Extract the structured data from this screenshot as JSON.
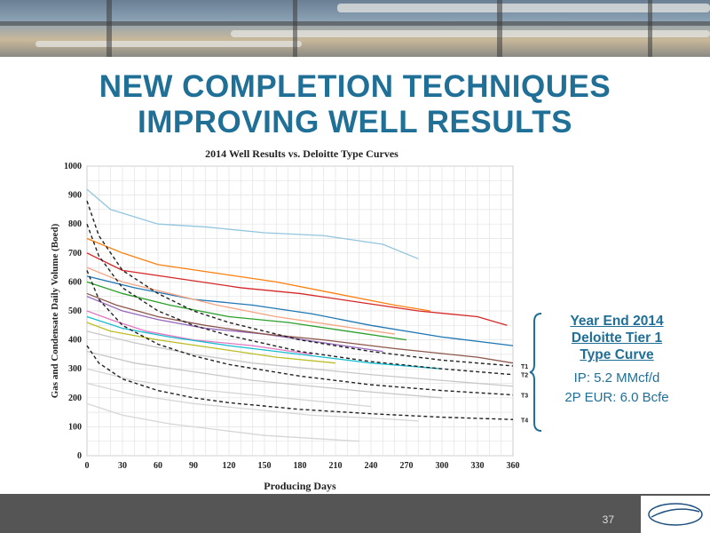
{
  "slide": {
    "title_lines": [
      "NEW COMPLETION TECHNIQUES",
      "IMPROVING WELL RESULTS"
    ],
    "page_number": "37"
  },
  "callout": {
    "heading_lines": [
      "Year End 2014",
      "Deloitte Tier 1",
      "Type Curve"
    ],
    "ip": "IP: 5.2 MMcf/d",
    "eur": "2P EUR: 6.0 Bcfe"
  },
  "colors": {
    "title": "#1f6f97",
    "footer": "#555555",
    "type_curve": "#222222",
    "well_palette": [
      "#d6d6d6",
      "#c8c8c8",
      "#1f77b4",
      "#ff7f0e",
      "#2ca02c",
      "#d62728",
      "#9467bd",
      "#8c564b",
      "#e377c2",
      "#17becf",
      "#bcbd22",
      "#f4a582",
      "#92c5de"
    ]
  },
  "chart_data": {
    "type": "line",
    "title": "2014 Well Results vs. Deloitte Type Curves",
    "xlabel": "Producing Days",
    "ylabel": "Gas and Condensate Daily Volume (Boed)",
    "xlim": [
      0,
      360
    ],
    "ylim": [
      0,
      1000
    ],
    "xticks": [
      0,
      30,
      60,
      90,
      120,
      150,
      180,
      210,
      240,
      270,
      300,
      330,
      360
    ],
    "yticks": [
      0,
      100,
      200,
      300,
      400,
      500,
      600,
      700,
      800,
      900,
      1000
    ],
    "grid": true,
    "legend": "none",
    "type_curves": [
      {
        "name": "T1",
        "x": [
          0,
          10,
          30,
          60,
          90,
          120,
          180,
          240,
          300,
          360
        ],
        "y": [
          880,
          760,
          640,
          560,
          500,
          460,
          400,
          360,
          330,
          310
        ]
      },
      {
        "name": "T2",
        "x": [
          0,
          10,
          30,
          60,
          90,
          120,
          180,
          240,
          300,
          360
        ],
        "y": [
          800,
          690,
          580,
          500,
          450,
          415,
          360,
          325,
          300,
          280
        ]
      },
      {
        "name": "T3",
        "x": [
          0,
          10,
          30,
          60,
          90,
          120,
          180,
          240,
          300,
          360
        ],
        "y": [
          640,
          540,
          450,
          385,
          345,
          315,
          275,
          245,
          225,
          210
        ]
      },
      {
        "name": "T4",
        "x": [
          0,
          10,
          30,
          60,
          90,
          120,
          180,
          240,
          300,
          360
        ],
        "y": [
          380,
          320,
          265,
          225,
          200,
          183,
          160,
          145,
          133,
          125
        ]
      }
    ],
    "wells": [
      {
        "color": "#92c5de",
        "x": [
          0,
          20,
          60,
          100,
          150,
          200,
          250,
          280
        ],
        "y": [
          920,
          850,
          800,
          790,
          770,
          760,
          730,
          680
        ]
      },
      {
        "color": "#d62728",
        "x": [
          0,
          30,
          80,
          130,
          180,
          230,
          280,
          330,
          355
        ],
        "y": [
          700,
          640,
          610,
          580,
          560,
          530,
          500,
          480,
          450
        ]
      },
      {
        "color": "#ff7f0e",
        "x": [
          0,
          30,
          60,
          110,
          160,
          210,
          260,
          290
        ],
        "y": [
          750,
          700,
          660,
          630,
          600,
          560,
          520,
          500
        ]
      },
      {
        "color": "#1f77b4",
        "x": [
          0,
          40,
          90,
          140,
          190,
          240,
          300,
          360
        ],
        "y": [
          620,
          580,
          540,
          520,
          490,
          450,
          410,
          380
        ]
      },
      {
        "color": "#2ca02c",
        "x": [
          0,
          30,
          70,
          120,
          170,
          220,
          270
        ],
        "y": [
          600,
          560,
          520,
          480,
          460,
          430,
          400
        ]
      },
      {
        "color": "#9467bd",
        "x": [
          0,
          30,
          60,
          100,
          150,
          200,
          250
        ],
        "y": [
          550,
          500,
          470,
          440,
          420,
          390,
          360
        ]
      },
      {
        "color": "#8c564b",
        "x": [
          0,
          25,
          60,
          100,
          150,
          200,
          260,
          330,
          360
        ],
        "y": [
          560,
          520,
          480,
          450,
          420,
          400,
          370,
          340,
          320
        ]
      },
      {
        "color": "#e377c2",
        "x": [
          0,
          20,
          50,
          90,
          140,
          190
        ],
        "y": [
          500,
          470,
          430,
          400,
          380,
          350
        ]
      },
      {
        "color": "#17becf",
        "x": [
          0,
          30,
          70,
          120,
          180,
          240,
          300
        ],
        "y": [
          480,
          440,
          410,
          380,
          350,
          320,
          300
        ]
      },
      {
        "color": "#bcbd22",
        "x": [
          0,
          20,
          60,
          110,
          160,
          210
        ],
        "y": [
          460,
          430,
          400,
          370,
          340,
          320
        ]
      },
      {
        "color": "#c8c8c8",
        "x": [
          0,
          40,
          90,
          140,
          190,
          240,
          300,
          360
        ],
        "y": [
          430,
          390,
          350,
          320,
          300,
          280,
          260,
          240
        ]
      },
      {
        "color": "#c8c8c8",
        "x": [
          0,
          40,
          90,
          140,
          190,
          240,
          300
        ],
        "y": [
          360,
          320,
          290,
          260,
          240,
          220,
          200
        ]
      },
      {
        "color": "#d6d6d6",
        "x": [
          0,
          40,
          90,
          140,
          190,
          240
        ],
        "y": [
          300,
          260,
          230,
          210,
          190,
          170
        ]
      },
      {
        "color": "#d6d6d6",
        "x": [
          0,
          40,
          90,
          140,
          190,
          240,
          280
        ],
        "y": [
          250,
          210,
          180,
          160,
          140,
          130,
          120
        ]
      },
      {
        "color": "#d6d6d6",
        "x": [
          0,
          30,
          70,
          110,
          150,
          190,
          230
        ],
        "y": [
          180,
          140,
          110,
          90,
          70,
          60,
          50
        ]
      },
      {
        "color": "#f4a582",
        "x": [
          0,
          30,
          70,
          110,
          160,
          210,
          260
        ],
        "y": [
          650,
          600,
          560,
          520,
          480,
          450,
          420
        ]
      }
    ]
  }
}
